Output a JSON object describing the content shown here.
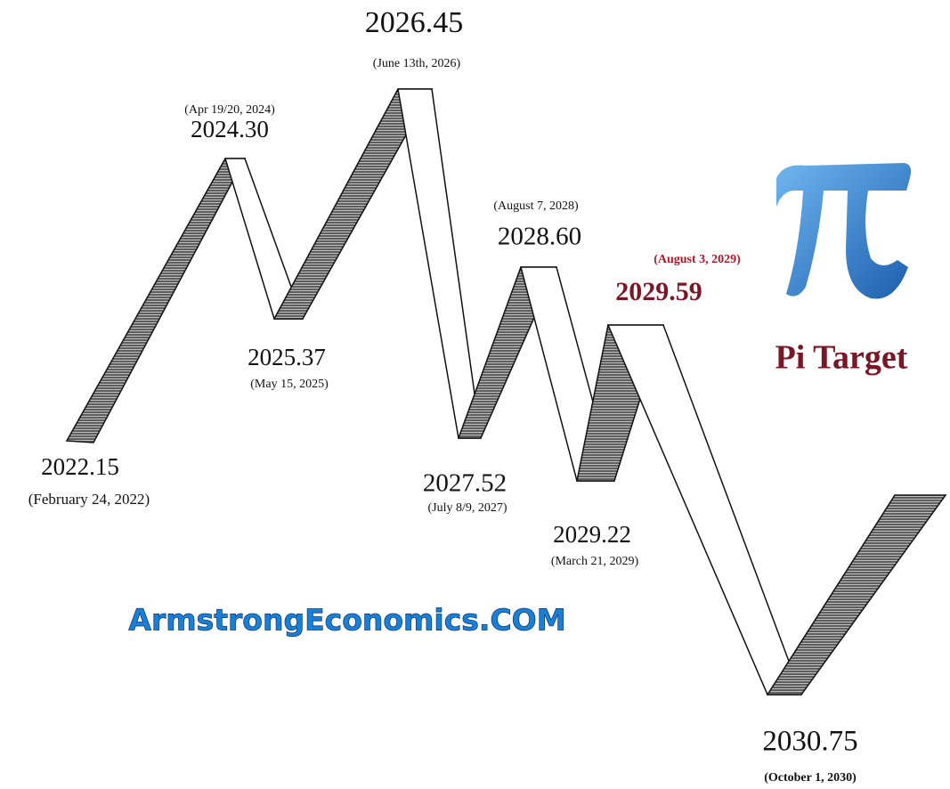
{
  "nodes": [
    {
      "value": "2022.15",
      "date": "(February 24, 2022)"
    },
    {
      "value": "2024.30",
      "date": "(Apr 19/20, 2024)"
    },
    {
      "value": "2025.37",
      "date": "(May 15, 2025)"
    },
    {
      "value": "2026.45",
      "date": "(June 13th, 2026)"
    },
    {
      "value": "2027.52",
      "date": "(July 8/9, 2027)"
    },
    {
      "value": "2028.60",
      "date": "(August 7, 2028)"
    },
    {
      "value": "2029.22",
      "date": "(March 21, 2029)"
    },
    {
      "value": "2029.59",
      "date": "(August 3, 2029)"
    },
    {
      "value": "2030.75",
      "date": "(October 1, 2030)"
    }
  ],
  "brand": "ArmstrongEconomics.COM",
  "logo_caption": "Pi Target"
}
